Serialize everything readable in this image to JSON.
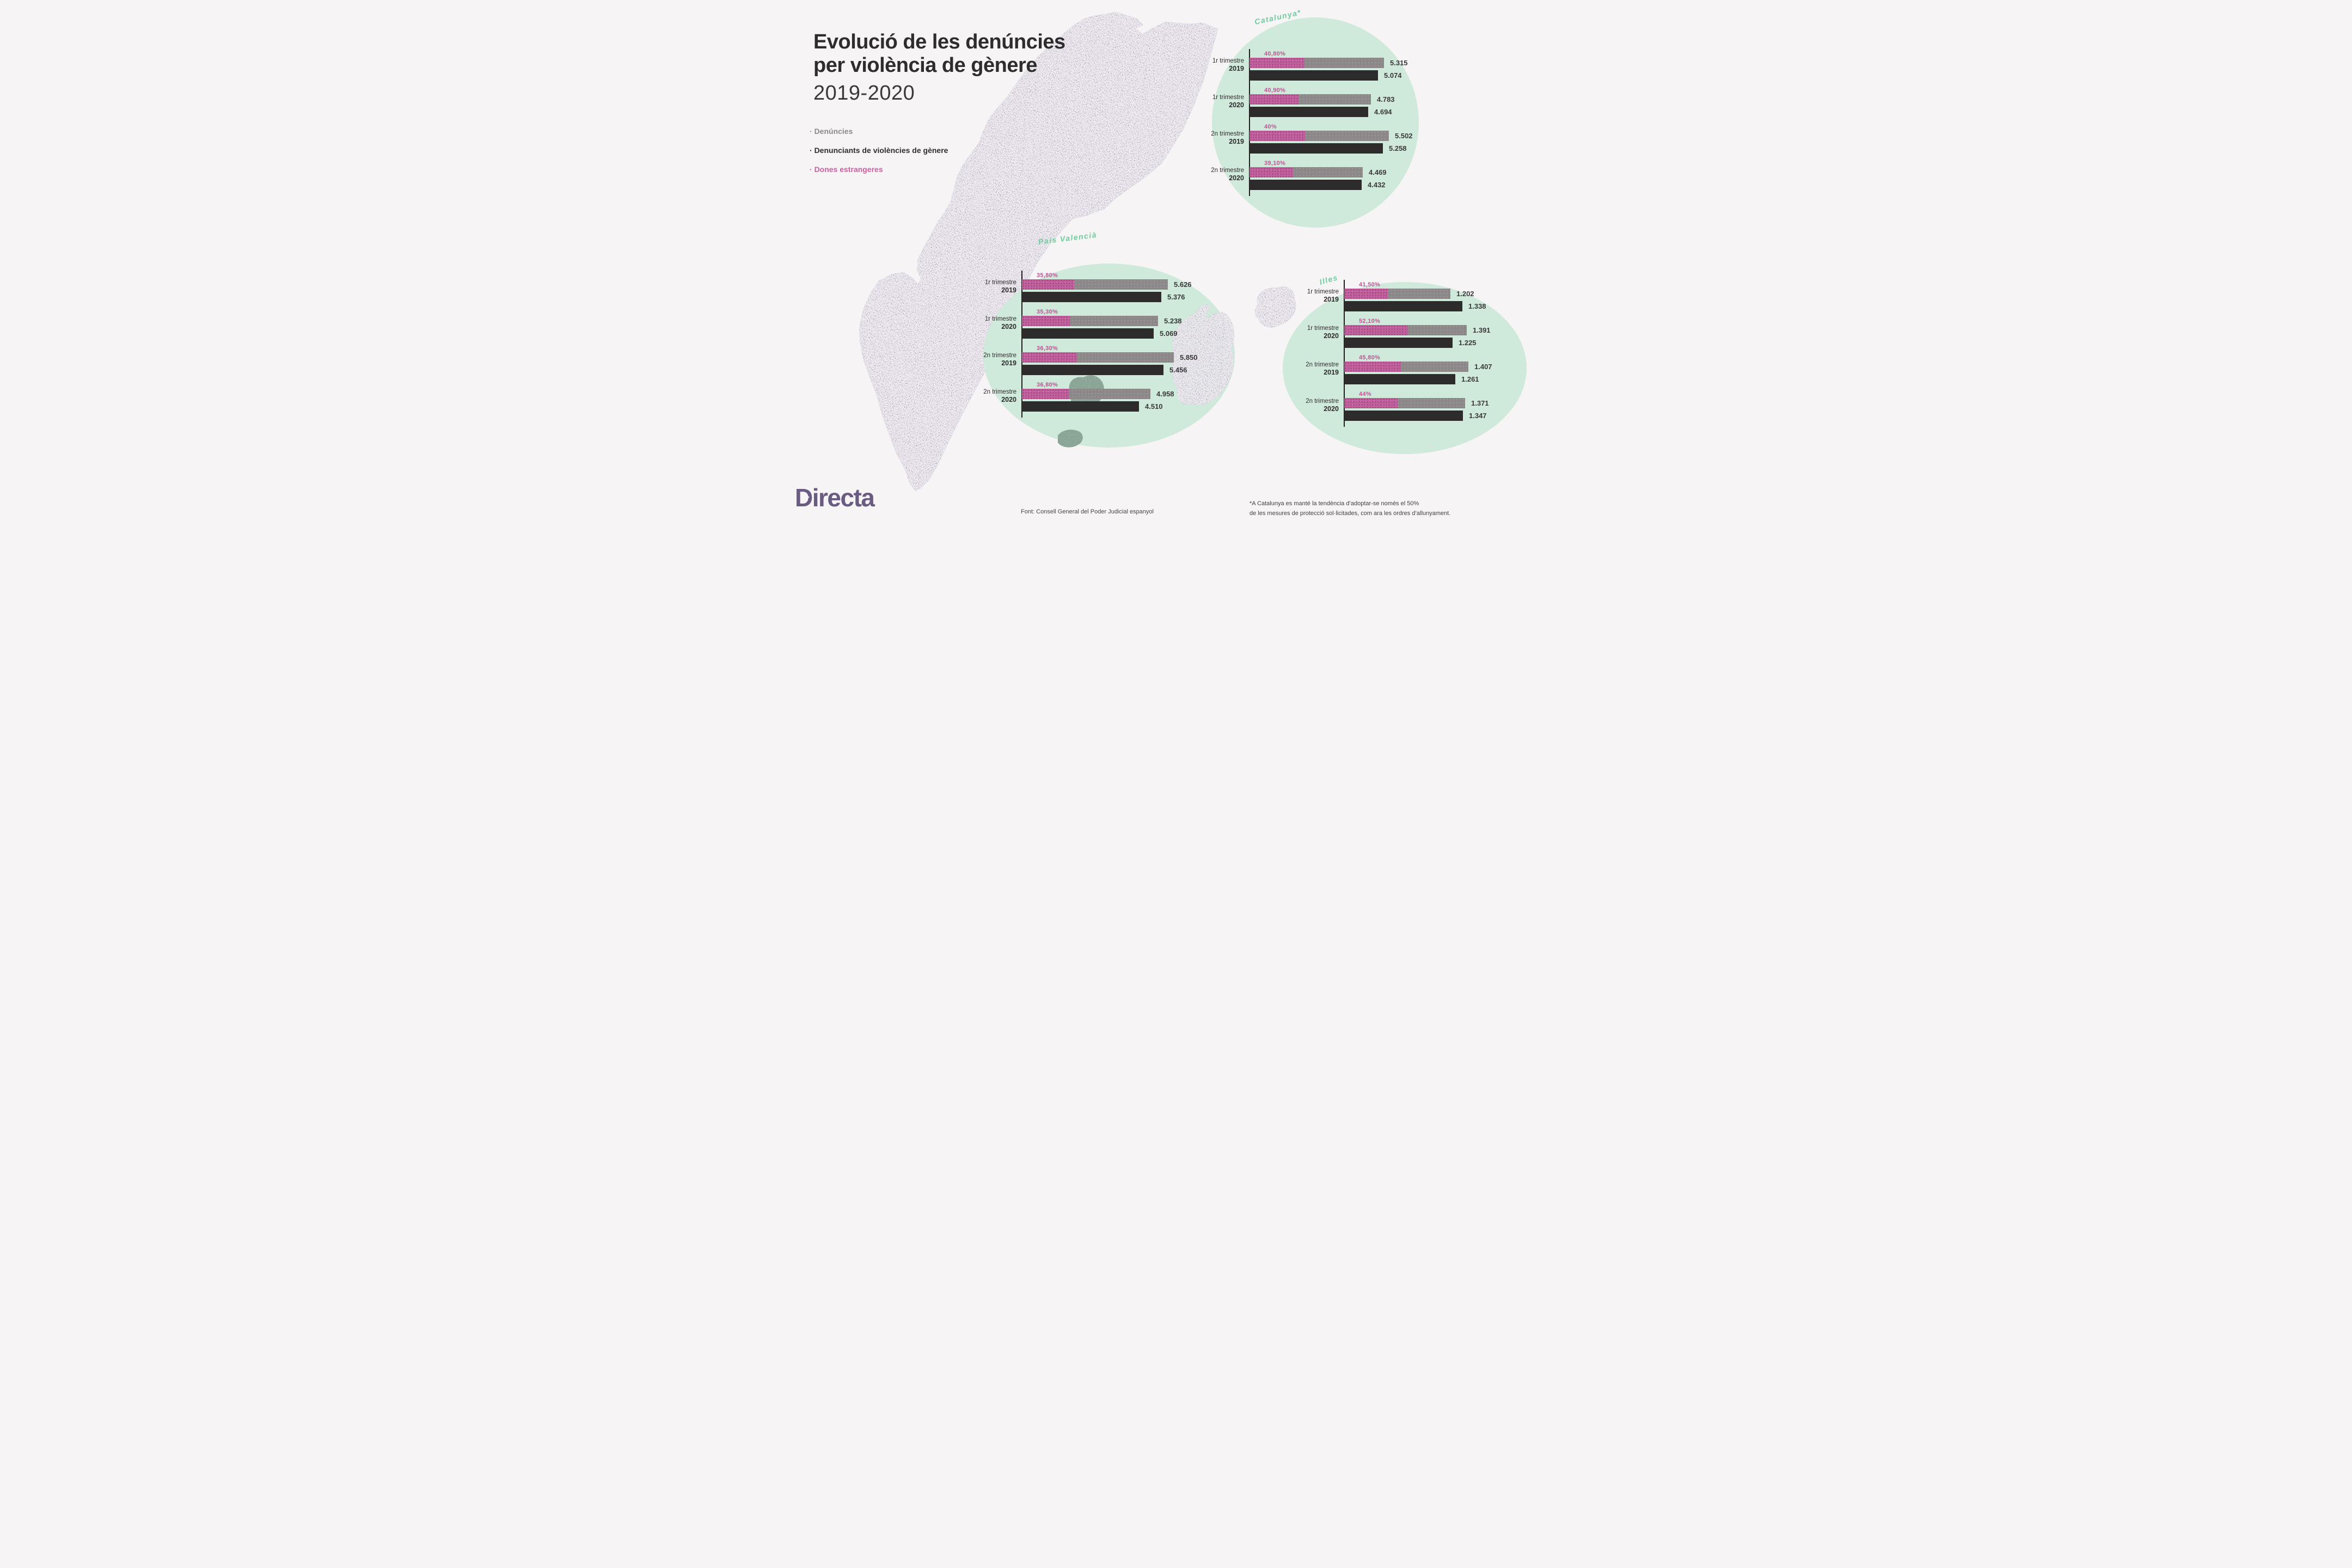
{
  "title": {
    "line1": "Evolució de les denúncies",
    "line2": "per violència de gènere",
    "period": "2019-2020"
  },
  "legend": [
    {
      "label": "Denúncies",
      "color": "#8e8a8b"
    },
    {
      "label": "Denunciants de violències de gènere",
      "color": "#2e2c2d"
    },
    {
      "label": "Dones estrangeres",
      "color": "#cf5da2"
    }
  ],
  "charts": [
    {
      "title": "Catalunya*",
      "rows": [
        {
          "period": "1r trimestre",
          "year": "2019",
          "pct": "40,80%",
          "pct_value": 40.8,
          "denuncies": "5.315",
          "denuncies_value": 5315,
          "denunciants": "5.074",
          "denunciants_value": 5074
        },
        {
          "period": "1r trimestre",
          "year": "2020",
          "pct": "40,90%",
          "pct_value": 40.9,
          "denuncies": "4.783",
          "denuncies_value": 4783,
          "denunciants": "4.694",
          "denunciants_value": 4694
        },
        {
          "period": "2n trimestre",
          "year": "2019",
          "pct": "40%",
          "pct_value": 40.0,
          "denuncies": "5.502",
          "denuncies_value": 5502,
          "denunciants": "5.258",
          "denunciants_value": 5258
        },
        {
          "period": "2n trimestre",
          "year": "2020",
          "pct": "39,10%",
          "pct_value": 39.1,
          "denuncies": "4.469",
          "denuncies_value": 4469,
          "denunciants": "4.432",
          "denunciants_value": 4432
        }
      ]
    },
    {
      "title": "País Valencià",
      "rows": [
        {
          "period": "1r trimestre",
          "year": "2019",
          "pct": "35,80%",
          "pct_value": 35.8,
          "denuncies": "5.626",
          "denuncies_value": 5626,
          "denunciants": "5.376",
          "denunciants_value": 5376
        },
        {
          "period": "1r trimestre",
          "year": "2020",
          "pct": "35,30%",
          "pct_value": 35.3,
          "denuncies": "5.238",
          "denuncies_value": 5238,
          "denunciants": "5.069",
          "denunciants_value": 5069
        },
        {
          "period": "2n trimestre",
          "year": "2019",
          "pct": "36,30%",
          "pct_value": 36.3,
          "denuncies": "5.850",
          "denuncies_value": 5850,
          "denunciants": "5.456",
          "denunciants_value": 5456
        },
        {
          "period": "2n trimestre",
          "year": "2020",
          "pct": "36,80%",
          "pct_value": 36.8,
          "denuncies": "4.958",
          "denuncies_value": 4958,
          "denunciants": "4.510",
          "denunciants_value": 4510
        }
      ]
    },
    {
      "title": "Illes",
      "rows": [
        {
          "period": "1r trimestre",
          "year": "2019",
          "pct": "41,50%",
          "pct_value": 41.5,
          "denuncies": "1.202",
          "denuncies_value": 1202,
          "denunciants": "1.338",
          "denunciants_value": 1338
        },
        {
          "period": "1r trimestre",
          "year": "2020",
          "pct": "52,10%",
          "pct_value": 52.1,
          "denuncies": "1.391",
          "denuncies_value": 1391,
          "denunciants": "1.225",
          "denunciants_value": 1225
        },
        {
          "period": "2n trimestre",
          "year": "2019",
          "pct": "45,80%",
          "pct_value": 45.8,
          "denuncies": "1.407",
          "denuncies_value": 1407,
          "denunciants": "1.261",
          "denunciants_value": 1261
        },
        {
          "period": "2n trimestre",
          "year": "2020",
          "pct": "44%",
          "pct_value": 44.0,
          "denuncies": "1.371",
          "denuncies_value": 1371,
          "denunciants": "1.347",
          "denunciants_value": 1347
        }
      ]
    }
  ],
  "footer": {
    "source": "Font: Consell General del Poder Judicial espanyol",
    "note_line1": "*A Catalunya es manté la tendència d’adoptar-se només el 50%",
    "note_line2": "de les mesures de protecció sol·licitades, com ara les ordres d’allunyament."
  },
  "logo": {
    "text": "Directa",
    "color": "#6a5b82"
  },
  "colors": {
    "background": "#f6f4f5",
    "circle_green": "#cfe9db",
    "region_label_green": "#6ecd9e",
    "bar_gray": "#8c8788",
    "bar_black": "#2d2b2b",
    "bar_pink": "#c2619d",
    "map_purple": "#c9bed2"
  },
  "chart_data": [
    {
      "type": "bar",
      "title": "Catalunya*",
      "categories": [
        "1r trimestre 2019",
        "1r trimestre 2020",
        "2n trimestre 2019",
        "2n trimestre 2020"
      ],
      "series": [
        {
          "name": "Denúncies",
          "values": [
            5315,
            4783,
            5502,
            4469
          ]
        },
        {
          "name": "Denunciants de violències de gènere",
          "values": [
            5074,
            4694,
            5258,
            4432
          ]
        },
        {
          "name": "Dones estrangeres (% sobre denúncies)",
          "values": [
            40.8,
            40.9,
            40.0,
            39.1
          ]
        }
      ],
      "orientation": "horizontal",
      "grid": false,
      "legend_position": "top-left of page"
    },
    {
      "type": "bar",
      "title": "País Valencià",
      "categories": [
        "1r trimestre 2019",
        "1r trimestre 2020",
        "2n trimestre 2019",
        "2n trimestre 2020"
      ],
      "series": [
        {
          "name": "Denúncies",
          "values": [
            5626,
            5238,
            5850,
            4958
          ]
        },
        {
          "name": "Denunciants de violències de gènere",
          "values": [
            5376,
            5069,
            5456,
            4510
          ]
        },
        {
          "name": "Dones estrangeres (% sobre denúncies)",
          "values": [
            35.8,
            35.3,
            36.3,
            36.8
          ]
        }
      ],
      "orientation": "horizontal",
      "grid": false,
      "legend_position": "top-left of page"
    },
    {
      "type": "bar",
      "title": "Illes",
      "categories": [
        "1r trimestre 2019",
        "1r trimestre 2020",
        "2n trimestre 2019",
        "2n trimestre 2020"
      ],
      "series": [
        {
          "name": "Denúncies",
          "values": [
            1202,
            1391,
            1407,
            1371
          ]
        },
        {
          "name": "Denunciants de violències de gènere",
          "values": [
            1338,
            1225,
            1261,
            1347
          ]
        },
        {
          "name": "Dones estrangeres (% sobre denúncies)",
          "values": [
            41.5,
            52.1,
            45.8,
            44.0
          ]
        }
      ],
      "orientation": "horizontal",
      "grid": false,
      "legend_position": "top-left of page"
    }
  ]
}
